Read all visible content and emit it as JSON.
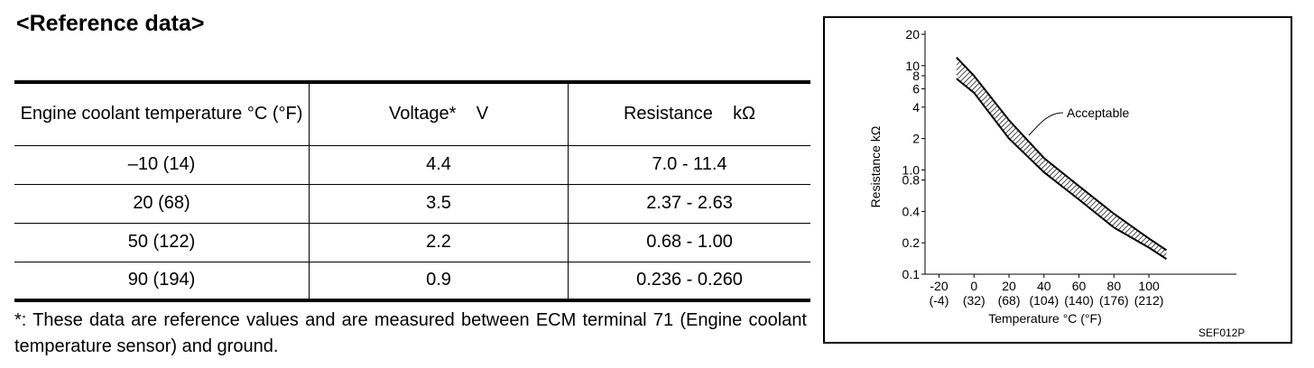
{
  "heading": "<Reference data>",
  "table": {
    "header": [
      "Engine coolant temperature °C (°F)",
      "Voltage*    V",
      "Resistance    kΩ"
    ],
    "rows": [
      [
        "–10 (14)",
        "4.4",
        "7.0 - 11.4"
      ],
      [
        "20 (68)",
        "3.5",
        "2.37 - 2.63"
      ],
      [
        "50 (122)",
        "2.2",
        "0.68 - 1.00"
      ],
      [
        "90 (194)",
        "0.9",
        "0.236 - 0.260"
      ]
    ]
  },
  "footnote": "*: These data are reference values and are measured between ECM terminal 71 (Engine coolant temperature sensor) and ground.",
  "chart_data": {
    "type": "band",
    "xlabel": "Temperature °C (°F)",
    "ylabel": "Resistance  kΩ",
    "annotation": "Acceptable",
    "figure_code": "SEF012P",
    "log_y": true,
    "color": "#000000",
    "x": [
      -10,
      0,
      20,
      40,
      60,
      80,
      100,
      110
    ],
    "upper": [
      12,
      8,
      3,
      1.3,
      0.7,
      0.38,
      0.22,
      0.17
    ],
    "lower": [
      7.5,
      5.5,
      2,
      0.95,
      0.52,
      0.28,
      0.18,
      0.14
    ],
    "xlim": [
      -28,
      150
    ],
    "ylim": [
      0.1,
      20
    ],
    "xticks": [
      -20,
      0,
      20,
      40,
      60,
      80,
      100
    ],
    "xtick_f_labels": [
      "(-4)",
      "(32)",
      "(68)",
      "(104)",
      "(140)",
      "(176)",
      "(212)"
    ],
    "yticks": [
      20,
      10,
      8,
      6,
      4,
      2,
      {
        "value": 1,
        "label": "1.0"
      },
      0.8,
      0.4,
      0.2,
      0.1
    ]
  }
}
